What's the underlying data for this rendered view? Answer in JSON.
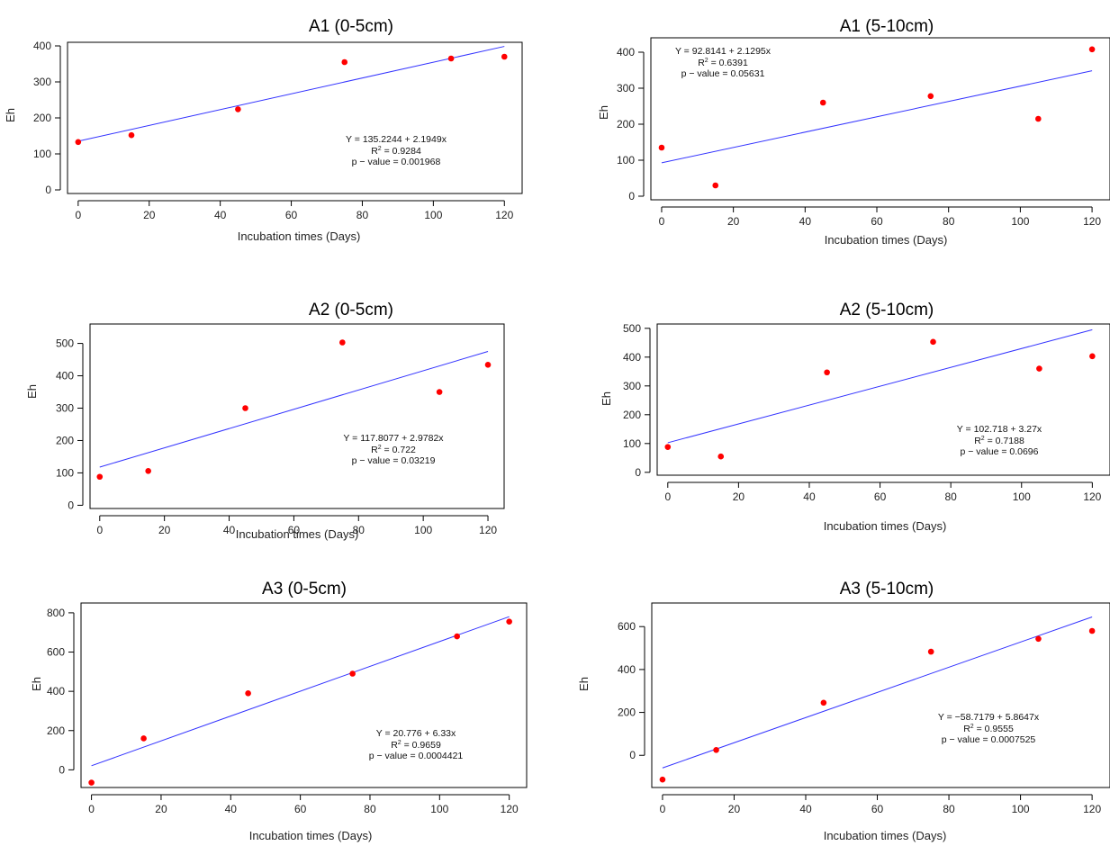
{
  "colors": {
    "points": "#ff0000",
    "fit_line": "#3333ff",
    "axes": "#000000"
  },
  "chart_data": [
    {
      "type": "scatter",
      "title": "A1 (0-5cm)",
      "xlabel": "Incubation times (Days)",
      "ylabel": "Eh",
      "xlim": [
        -3,
        125
      ],
      "ylim": [
        -10,
        410
      ],
      "xticks": [
        0,
        20,
        40,
        60,
        80,
        100,
        120
      ],
      "yticks": [
        0,
        100,
        200,
        300,
        400
      ],
      "x": [
        0,
        15,
        45,
        75,
        105,
        120
      ],
      "y": [
        133,
        152,
        224,
        355,
        365,
        370
      ],
      "fit": {
        "intercept": 135.2244,
        "slope": 2.1949
      },
      "annotation": {
        "equation": "Y = 135.2244 + 2.1949x",
        "r2_prefix": "R",
        "r2_value": " = 0.9284",
        "pvalue": "p − value = 0.001968"
      }
    },
    {
      "type": "scatter",
      "title": "A1 (5-10cm)",
      "xlabel": "Incubation times (Days)",
      "ylabel": "Eh",
      "xlim": [
        -3,
        125
      ],
      "ylim": [
        -10,
        440
      ],
      "xticks": [
        0,
        20,
        40,
        60,
        80,
        100,
        120
      ],
      "yticks": [
        0,
        100,
        200,
        300,
        400
      ],
      "x": [
        0,
        15,
        45,
        75,
        105,
        120
      ],
      "y": [
        135,
        30,
        260,
        278,
        215,
        408
      ],
      "fit": {
        "intercept": 92.8141,
        "slope": 2.1295
      },
      "annotation": {
        "equation": "Y = 92.8141 + 2.1295x",
        "r2_prefix": "R",
        "r2_value": " = 0.6391",
        "pvalue": "p − value = 0.05631"
      }
    },
    {
      "type": "scatter",
      "title": "A2 (0-5cm)",
      "xlabel": "Incubation times (Days)",
      "ylabel": "Eh",
      "xlim": [
        -3,
        125
      ],
      "ylim": [
        -10,
        560
      ],
      "xticks": [
        0,
        20,
        40,
        60,
        80,
        100,
        120
      ],
      "yticks": [
        0,
        100,
        200,
        300,
        400,
        500
      ],
      "x": [
        0,
        15,
        45,
        75,
        105,
        120
      ],
      "y": [
        88,
        106,
        300,
        503,
        350,
        434
      ],
      "fit": {
        "intercept": 117.8077,
        "slope": 2.9782
      },
      "annotation": {
        "equation": "Y = 117.8077 + 2.9782x",
        "r2_prefix": "R",
        "r2_value": " = 0.722",
        "pvalue": "p − value = 0.03219"
      }
    },
    {
      "type": "scatter",
      "title": "A2 (5-10cm)",
      "xlabel": "Incubation times (Days)",
      "ylabel": "Eh",
      "xlim": [
        -3,
        125
      ],
      "ylim": [
        -10,
        515
      ],
      "xticks": [
        0,
        20,
        40,
        60,
        80,
        100,
        120
      ],
      "yticks": [
        0,
        100,
        200,
        300,
        400,
        500
      ],
      "x": [
        0,
        15,
        45,
        75,
        105,
        120
      ],
      "y": [
        88,
        55,
        347,
        453,
        360,
        403
      ],
      "fit": {
        "intercept": 102.718,
        "slope": 3.27
      },
      "annotation": {
        "equation": "Y = 102.718 + 3.27x",
        "r2_prefix": "R",
        "r2_value": " = 0.7188",
        "pvalue": "p − value = 0.0696"
      }
    },
    {
      "type": "scatter",
      "title": "A3 (0-5cm)",
      "xlabel": "Incubation times (Days)",
      "ylabel": "Eh",
      "xlim": [
        -3,
        125
      ],
      "ylim": [
        -90,
        850
      ],
      "xticks": [
        0,
        20,
        40,
        60,
        80,
        100,
        120
      ],
      "yticks": [
        0,
        200,
        400,
        600,
        800
      ],
      "x": [
        0,
        15,
        45,
        75,
        105,
        120
      ],
      "y": [
        -65,
        160,
        390,
        490,
        680,
        755
      ],
      "fit": {
        "intercept": 20.776,
        "slope": 6.33
      },
      "annotation": {
        "equation": "Y = 20.776 + 6.33x",
        "r2_prefix": "R",
        "r2_value": " = 0.9659",
        "pvalue": "p − value = 0.0004421"
      }
    },
    {
      "type": "scatter",
      "title": "A3 (5-10cm)",
      "xlabel": "Incubation times (Days)",
      "ylabel": "Eh",
      "xlim": [
        -3,
        125
      ],
      "ylim": [
        -150,
        710
      ],
      "xticks": [
        0,
        20,
        40,
        60,
        80,
        100,
        120
      ],
      "yticks": [
        0,
        200,
        400,
        600
      ],
      "x": [
        0,
        15,
        45,
        75,
        105,
        120
      ],
      "y": [
        -113,
        25,
        245,
        483,
        543,
        580
      ],
      "fit": {
        "intercept": -58.7179,
        "slope": 5.8647
      },
      "annotation": {
        "equation": "Y = −58.7179 + 5.8647x",
        "r2_prefix": "R",
        "r2_value": " = 0.9555",
        "pvalue": "p − value = 0.0007525"
      }
    }
  ]
}
